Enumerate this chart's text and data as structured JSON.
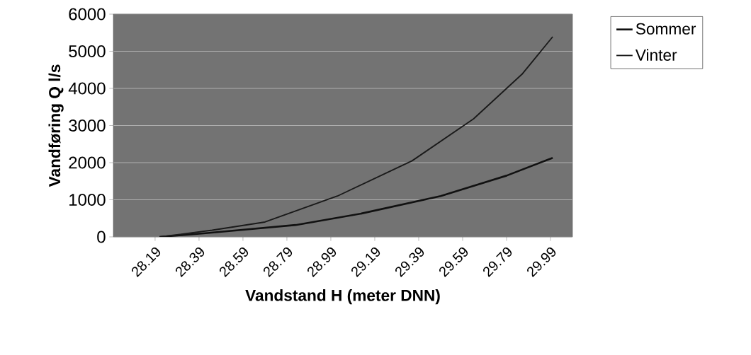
{
  "chart_data": {
    "type": "line",
    "xlabel": "Vandstand H (meter DNN)",
    "ylabel": "Vandføring Q l/s",
    "xlim": [
      28.0,
      30.09
    ],
    "xticks": [
      {
        "value": 28.19,
        "label": "28.19"
      },
      {
        "value": 28.39,
        "label": "28.39"
      },
      {
        "value": 28.59,
        "label": "28.59"
      },
      {
        "value": 28.79,
        "label": "28.79"
      },
      {
        "value": 28.99,
        "label": "28.99"
      },
      {
        "value": 29.19,
        "label": "29.19"
      },
      {
        "value": 29.39,
        "label": "29.39"
      },
      {
        "value": 29.59,
        "label": "29.59"
      },
      {
        "value": 29.79,
        "label": "29.79"
      },
      {
        "value": 29.99,
        "label": "29.99"
      }
    ],
    "ylim": [
      0,
      6000
    ],
    "yticks": [
      0,
      1000,
      2000,
      3000,
      4000,
      5000,
      6000
    ],
    "grid": "y",
    "legend": "right",
    "marker": "none",
    "line_style": "solid",
    "series": [
      {
        "name": "Sommer",
        "color": "#111111",
        "x": [
          28.21,
          28.42,
          28.83,
          29.13,
          29.49,
          29.79,
          30.0
        ],
        "values": [
          0,
          100,
          320,
          630,
          1100,
          1650,
          2130
        ]
      },
      {
        "name": "Vinter",
        "color": "#1a1a1a",
        "x": [
          28.21,
          28.29,
          28.45,
          28.69,
          29.02,
          29.36,
          29.64,
          29.86,
          30.0
        ],
        "values": [
          0,
          60,
          180,
          400,
          1100,
          2050,
          3180,
          4380,
          5390
        ]
      }
    ]
  }
}
